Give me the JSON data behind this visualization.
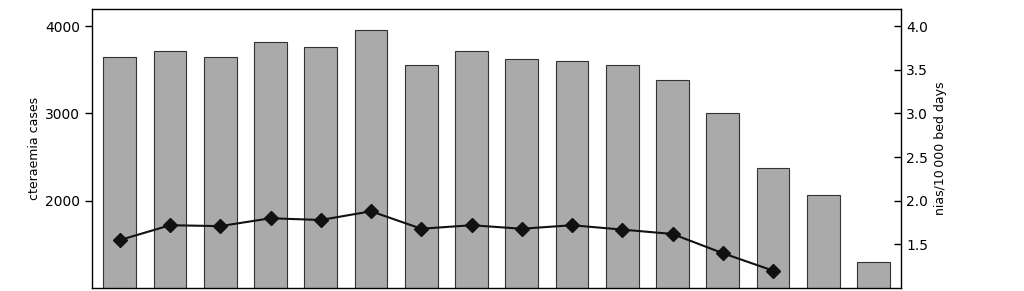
{
  "bar_values": [
    3650,
    3720,
    3650,
    3820,
    3760,
    3960,
    3560,
    3720,
    3620,
    3600,
    3560,
    3380,
    3000,
    2380,
    2070,
    1300
  ],
  "line_values": [
    1.55,
    1.72,
    1.71,
    1.8,
    1.78,
    1.88,
    1.68,
    1.72,
    1.68,
    1.72,
    1.67,
    1.62,
    1.4,
    1.2,
    null,
    null
  ],
  "bar_color": "#aaaaaa",
  "bar_edge_color": "#333333",
  "line_color": "#111111",
  "marker": "D",
  "marker_size": 7,
  "left_ylim": [
    1000,
    4200
  ],
  "right_ylim": [
    1.0,
    4.2
  ],
  "left_yticks": [
    2000,
    3000,
    4000
  ],
  "right_yticks": [
    1.5,
    2.0,
    2.5,
    3.0,
    3.5,
    4.0
  ],
  "left_ylabel": "cteraemia cases",
  "right_ylabel": "nias/10 000 bed days",
  "background_color": "#ffffff",
  "n_bars": 16,
  "bar_width": 0.65,
  "figsize": [
    10.24,
    2.91
  ],
  "dpi": 100
}
